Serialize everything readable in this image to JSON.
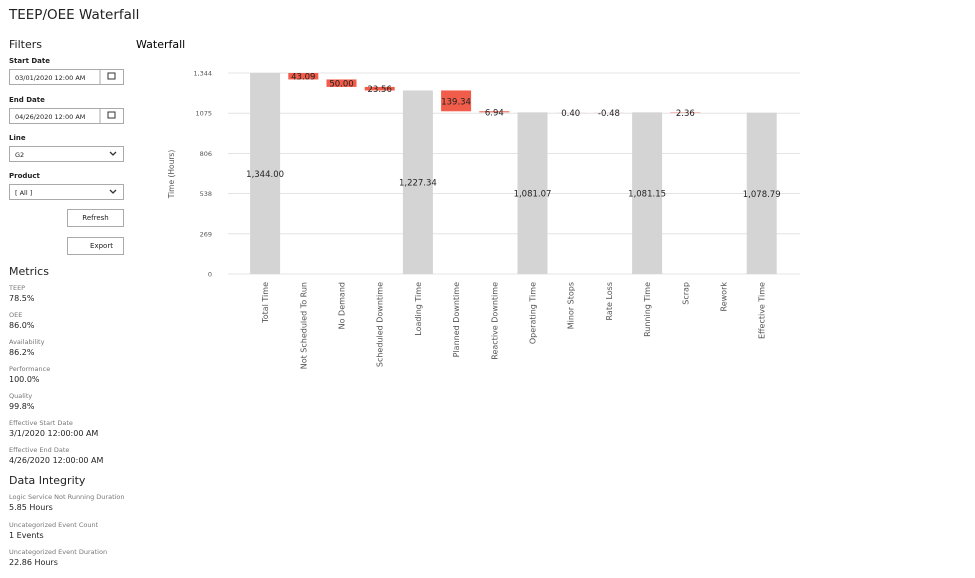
{
  "header": {
    "title": "TEEP/OEE Waterfall"
  },
  "filters": {
    "title": "Filters",
    "start_date": {
      "label": "Start Date",
      "value": "03/01/2020 12:00 AM"
    },
    "end_date": {
      "label": "End Date",
      "value": "04/26/2020 12:00 AM"
    },
    "line": {
      "label": "Line",
      "value": "G2"
    },
    "product": {
      "label": "Product",
      "value": "[ All ]"
    },
    "refresh": "Refresh",
    "export": "Export"
  },
  "metrics": {
    "title": "Metrics",
    "items": [
      {
        "label": "TEEP",
        "value": "78.5%"
      },
      {
        "label": "OEE",
        "value": "86.0%"
      },
      {
        "label": "Availability",
        "value": "86.2%"
      },
      {
        "label": "Performance",
        "value": "100.0%"
      },
      {
        "label": "Quality",
        "value": "99.8%"
      },
      {
        "label": "Effective Start Date",
        "value": "3/1/2020 12:00:00 AM"
      },
      {
        "label": "Effective End Date",
        "value": "4/26/2020 12:00:00 AM"
      }
    ]
  },
  "data_integrity": {
    "title": "Data Integrity",
    "items": [
      {
        "label": "Logic Service Not Running Duration",
        "value": "5.85 Hours"
      },
      {
        "label": "Uncategorized Event Count",
        "value": "1 Events"
      },
      {
        "label": "Uncategorized Event Duration",
        "value": "22.86 Hours"
      }
    ]
  },
  "chart_data": {
    "type": "waterfall",
    "title": "Waterfall",
    "y_label": "Time (Hours)",
    "categories": [
      "Total Time",
      "Not Scheduled To Run",
      "No Demand",
      "Scheduled Downtime",
      "Loading Time",
      "Planned Downtime",
      "Reactive Downtime",
      "Operating Time",
      "Minor Stops",
      "Rate Loss",
      "Running Time",
      "Scrap",
      "Rework",
      "Effective Time"
    ],
    "values": [
      1344,
      43.09,
      50,
      23.56,
      1227.34,
      139.34,
      6.94,
      1081.07,
      0.4,
      -0.48,
      1081.15,
      2.36,
      0,
      1078.79
    ],
    "value_labels": [
      "1,344.00",
      "43.09",
      "50.00",
      "23.56",
      "1,227.34",
      "139.34",
      "6.94",
      "1,081.07",
      "0.40",
      "-0.48",
      "1,081.15",
      "2.36",
      null,
      "1,078.79"
    ],
    "measure": [
      "total",
      "loss",
      "loss",
      "loss",
      "total",
      "loss",
      "loss",
      "total",
      "loss",
      "loss",
      "total",
      "loss",
      "loss",
      "total"
    ],
    "total_color": "#d4d4d4",
    "loss_color": "#f25c4a",
    "ylim": [
      0,
      1344
    ],
    "yticks": [
      0,
      269,
      538,
      806,
      1075,
      {
        "value": 1344,
        "label": "1,344"
      }
    ],
    "grid": true
  }
}
